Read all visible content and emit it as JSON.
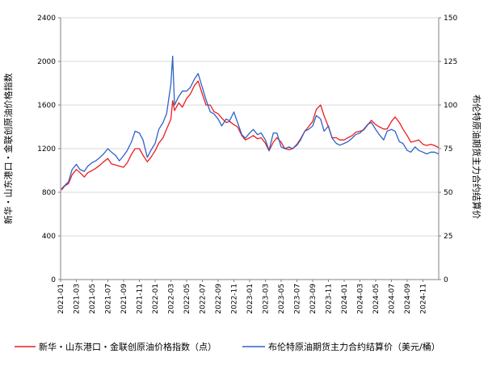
{
  "chart_data": {
    "type": "line",
    "ylabel_left": "新华・山东港口・金联创原油价格指数",
    "ylabel_right": "布伦特原油期货主力合约结算价",
    "ylim_left": [
      0,
      2400
    ],
    "ylim_right": [
      0,
      150
    ],
    "yticks_left": [
      "0",
      "400",
      "800",
      "1200",
      "1600",
      "2000",
      "2400"
    ],
    "yticks_right": [
      "0",
      "25",
      "50",
      "75",
      "100",
      "125",
      "150"
    ],
    "x_ticks": [
      "2021-01",
      "2021-03",
      "2021-05",
      "2021-07",
      "2021-09",
      "2021-11",
      "2022-01",
      "2022-03",
      "2022-05",
      "2022-07",
      "2022-09",
      "2022-11",
      "2023-01",
      "2023-03",
      "2023-05",
      "2023-07",
      "2023-09",
      "2023-11",
      "2024-01",
      "2024-03",
      "2024-05",
      "2024-07",
      "2024-09",
      "2024-11"
    ],
    "x_range": [
      "2021-01",
      "2024-12"
    ],
    "grid": "horizontal",
    "legend_position": "bottom",
    "colors": {
      "index": "#ee1c1c",
      "brent": "#2f62c8",
      "grid": "#d9d9d9",
      "axis": "#808080"
    },
    "series": [
      {
        "name": "新华・山东港口・金联创原油价格指数（点）",
        "axis": "left",
        "color": "#ee1c1c",
        "x": [
          "2021-01-04",
          "2021-01-18",
          "2021-02-01",
          "2021-02-15",
          "2021-03-01",
          "2021-03-15",
          "2021-04-01",
          "2021-04-15",
          "2021-05-01",
          "2021-05-15",
          "2021-06-01",
          "2021-06-15",
          "2021-07-01",
          "2021-07-15",
          "2021-08-01",
          "2021-08-15",
          "2021-09-01",
          "2021-09-15",
          "2021-10-01",
          "2021-10-15",
          "2021-11-01",
          "2021-11-15",
          "2021-12-01",
          "2021-12-15",
          "2022-01-01",
          "2022-01-15",
          "2022-02-01",
          "2022-02-15",
          "2022-03-01",
          "2022-03-08",
          "2022-03-15",
          "2022-04-01",
          "2022-04-15",
          "2022-05-01",
          "2022-05-15",
          "2022-06-01",
          "2022-06-15",
          "2022-07-01",
          "2022-07-15",
          "2022-08-01",
          "2022-08-15",
          "2022-09-01",
          "2022-09-15",
          "2022-10-01",
          "2022-10-15",
          "2022-11-01",
          "2022-11-15",
          "2022-12-01",
          "2022-12-15",
          "2023-01-01",
          "2023-01-15",
          "2023-02-01",
          "2023-02-15",
          "2023-03-01",
          "2023-03-15",
          "2023-04-01",
          "2023-04-15",
          "2023-05-01",
          "2023-05-15",
          "2023-06-01",
          "2023-06-15",
          "2023-07-01",
          "2023-07-15",
          "2023-08-01",
          "2023-08-15",
          "2023-09-01",
          "2023-09-15",
          "2023-10-01",
          "2023-10-15",
          "2023-11-01",
          "2023-11-15",
          "2023-12-01",
          "2023-12-15",
          "2024-01-01",
          "2024-01-15",
          "2024-02-01",
          "2024-02-15",
          "2024-03-01",
          "2024-03-15",
          "2024-04-01",
          "2024-04-15",
          "2024-05-01",
          "2024-05-15",
          "2024-06-01",
          "2024-06-15",
          "2024-07-01",
          "2024-07-15",
          "2024-08-01",
          "2024-08-15",
          "2024-09-01",
          "2024-09-15",
          "2024-10-01",
          "2024-10-15",
          "2024-11-01",
          "2024-11-15",
          "2024-12-01",
          "2024-12-15",
          "2024-12-31"
        ],
        "values": [
          820,
          860,
          880,
          960,
          1010,
          980,
          940,
          980,
          1000,
          1020,
          1050,
          1080,
          1110,
          1060,
          1050,
          1040,
          1030,
          1070,
          1150,
          1200,
          1200,
          1140,
          1080,
          1120,
          1180,
          1250,
          1300,
          1380,
          1470,
          1640,
          1550,
          1620,
          1580,
          1660,
          1700,
          1780,
          1820,
          1700,
          1600,
          1600,
          1540,
          1520,
          1480,
          1440,
          1450,
          1420,
          1400,
          1320,
          1280,
          1300,
          1320,
          1290,
          1300,
          1250,
          1180,
          1260,
          1300,
          1260,
          1200,
          1190,
          1200,
          1240,
          1290,
          1360,
          1400,
          1450,
          1560,
          1600,
          1500,
          1400,
          1300,
          1300,
          1280,
          1280,
          1300,
          1320,
          1350,
          1360,
          1370,
          1420,
          1460,
          1420,
          1400,
          1380,
          1380,
          1450,
          1490,
          1440,
          1380,
          1320,
          1260,
          1270,
          1280,
          1240,
          1230,
          1240,
          1230,
          1210
        ]
      },
      {
        "name": "布伦特原油期货主力合约结算价（美元/桶）",
        "axis": "right",
        "color": "#2f62c8",
        "x": [
          "2021-01-04",
          "2021-01-18",
          "2021-02-01",
          "2021-02-15",
          "2021-03-01",
          "2021-03-15",
          "2021-04-01",
          "2021-04-15",
          "2021-05-01",
          "2021-05-15",
          "2021-06-01",
          "2021-06-15",
          "2021-07-01",
          "2021-07-15",
          "2021-08-01",
          "2021-08-15",
          "2021-09-01",
          "2021-09-15",
          "2021-10-01",
          "2021-10-15",
          "2021-11-01",
          "2021-11-15",
          "2021-12-01",
          "2021-12-15",
          "2022-01-01",
          "2022-01-15",
          "2022-02-01",
          "2022-02-15",
          "2022-03-01",
          "2022-03-08",
          "2022-03-15",
          "2022-04-01",
          "2022-04-15",
          "2022-05-01",
          "2022-05-15",
          "2022-06-01",
          "2022-06-15",
          "2022-07-01",
          "2022-07-15",
          "2022-08-01",
          "2022-08-15",
          "2022-09-01",
          "2022-09-15",
          "2022-10-01",
          "2022-10-15",
          "2022-11-01",
          "2022-11-15",
          "2022-12-01",
          "2022-12-15",
          "2023-01-01",
          "2023-01-15",
          "2023-02-01",
          "2023-02-15",
          "2023-03-01",
          "2023-03-15",
          "2023-04-01",
          "2023-04-15",
          "2023-05-01",
          "2023-05-15",
          "2023-06-01",
          "2023-06-15",
          "2023-07-01",
          "2023-07-15",
          "2023-08-01",
          "2023-08-15",
          "2023-09-01",
          "2023-09-15",
          "2023-10-01",
          "2023-10-15",
          "2023-11-01",
          "2023-11-15",
          "2023-12-01",
          "2023-12-15",
          "2024-01-01",
          "2024-01-15",
          "2024-02-01",
          "2024-02-15",
          "2024-03-01",
          "2024-03-15",
          "2024-04-01",
          "2024-04-15",
          "2024-05-01",
          "2024-05-15",
          "2024-06-01",
          "2024-06-15",
          "2024-07-01",
          "2024-07-15",
          "2024-08-01",
          "2024-08-15",
          "2024-09-01",
          "2024-09-15",
          "2024-10-01",
          "2024-10-15",
          "2024-11-01",
          "2024-11-15",
          "2024-12-01",
          "2024-12-15",
          "2024-12-31"
        ],
        "values": [
          52,
          54,
          56,
          63,
          66,
          63,
          62,
          65,
          67,
          68,
          70,
          72,
          75,
          73,
          71,
          68,
          71,
          74,
          79,
          85,
          84,
          80,
          70,
          74,
          78,
          86,
          90,
          95,
          112,
          128,
          100,
          105,
          108,
          108,
          110,
          115,
          118,
          110,
          103,
          96,
          95,
          92,
          88,
          92,
          91,
          96,
          90,
          83,
          81,
          84,
          86,
          83,
          84,
          80,
          74,
          84,
          84,
          76,
          75,
          76,
          75,
          77,
          80,
          85,
          86,
          88,
          94,
          92,
          85,
          88,
          81,
          78,
          77,
          78,
          79,
          81,
          83,
          84,
          86,
          89,
          90,
          86,
          83,
          80,
          85,
          86,
          85,
          79,
          78,
          74,
          73,
          76,
          74,
          73,
          72,
          73,
          73,
          72
        ]
      }
    ]
  }
}
